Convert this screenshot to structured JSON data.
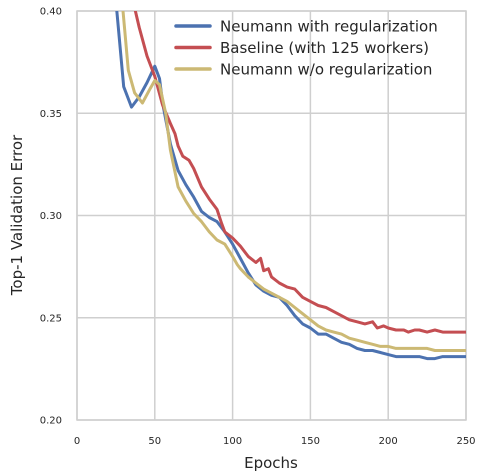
{
  "chart_data": {
    "type": "line",
    "xlabel": "Epochs",
    "ylabel": "Top-1 Validation Error",
    "xlim": [
      0,
      250
    ],
    "ylim": [
      0.2,
      0.4
    ],
    "xticks": [
      "0",
      "50",
      "100",
      "150",
      "200",
      "250"
    ],
    "yticks": [
      "0.20",
      "0.25",
      "0.30",
      "0.35",
      "0.40"
    ],
    "grid": true,
    "legend_position": "top-right",
    "series": [
      {
        "name": "Neumann with regularization",
        "color": "#4c72b0",
        "points": [
          [
            25,
            0.405
          ],
          [
            30,
            0.363
          ],
          [
            35,
            0.353
          ],
          [
            40,
            0.358
          ],
          [
            45,
            0.365
          ],
          [
            50,
            0.373
          ],
          [
            53,
            0.367
          ],
          [
            55,
            0.355
          ],
          [
            60,
            0.335
          ],
          [
            65,
            0.322
          ],
          [
            70,
            0.315
          ],
          [
            75,
            0.309
          ],
          [
            80,
            0.302
          ],
          [
            85,
            0.299
          ],
          [
            90,
            0.297
          ],
          [
            95,
            0.292
          ],
          [
            100,
            0.286
          ],
          [
            105,
            0.279
          ],
          [
            110,
            0.272
          ],
          [
            115,
            0.266
          ],
          [
            120,
            0.263
          ],
          [
            125,
            0.261
          ],
          [
            130,
            0.26
          ],
          [
            135,
            0.256
          ],
          [
            140,
            0.251
          ],
          [
            145,
            0.247
          ],
          [
            150,
            0.245
          ],
          [
            155,
            0.242
          ],
          [
            160,
            0.242
          ],
          [
            165,
            0.24
          ],
          [
            170,
            0.238
          ],
          [
            175,
            0.237
          ],
          [
            180,
            0.235
          ],
          [
            185,
            0.234
          ],
          [
            190,
            0.234
          ],
          [
            195,
            0.233
          ],
          [
            200,
            0.232
          ],
          [
            205,
            0.231
          ],
          [
            210,
            0.231
          ],
          [
            215,
            0.231
          ],
          [
            220,
            0.231
          ],
          [
            225,
            0.23
          ],
          [
            230,
            0.23
          ],
          [
            235,
            0.231
          ],
          [
            240,
            0.231
          ],
          [
            245,
            0.231
          ],
          [
            250,
            0.231
          ]
        ]
      },
      {
        "name": "Baseline (with 125 workers)",
        "color": "#c44e52",
        "points": [
          [
            36,
            0.405
          ],
          [
            40,
            0.392
          ],
          [
            45,
            0.378
          ],
          [
            50,
            0.368
          ],
          [
            55,
            0.354
          ],
          [
            60,
            0.345
          ],
          [
            63,
            0.34
          ],
          [
            65,
            0.334
          ],
          [
            68,
            0.329
          ],
          [
            72,
            0.327
          ],
          [
            75,
            0.323
          ],
          [
            80,
            0.314
          ],
          [
            85,
            0.308
          ],
          [
            90,
            0.303
          ],
          [
            93,
            0.296
          ],
          [
            95,
            0.292
          ],
          [
            100,
            0.289
          ],
          [
            105,
            0.285
          ],
          [
            110,
            0.28
          ],
          [
            115,
            0.277
          ],
          [
            118,
            0.279
          ],
          [
            120,
            0.273
          ],
          [
            123,
            0.274
          ],
          [
            125,
            0.27
          ],
          [
            130,
            0.267
          ],
          [
            135,
            0.265
          ],
          [
            140,
            0.264
          ],
          [
            145,
            0.26
          ],
          [
            150,
            0.258
          ],
          [
            155,
            0.256
          ],
          [
            160,
            0.255
          ],
          [
            165,
            0.253
          ],
          [
            170,
            0.251
          ],
          [
            175,
            0.249
          ],
          [
            180,
            0.248
          ],
          [
            185,
            0.247
          ],
          [
            190,
            0.248
          ],
          [
            193,
            0.245
          ],
          [
            197,
            0.246
          ],
          [
            200,
            0.245
          ],
          [
            205,
            0.244
          ],
          [
            210,
            0.244
          ],
          [
            213,
            0.243
          ],
          [
            217,
            0.244
          ],
          [
            220,
            0.244
          ],
          [
            225,
            0.243
          ],
          [
            230,
            0.244
          ],
          [
            235,
            0.243
          ],
          [
            240,
            0.243
          ],
          [
            245,
            0.243
          ],
          [
            250,
            0.243
          ]
        ]
      },
      {
        "name": "Neumann w/o regularization",
        "color": "#ccb974",
        "points": [
          [
            29,
            0.405
          ],
          [
            33,
            0.371
          ],
          [
            37,
            0.36
          ],
          [
            42,
            0.355
          ],
          [
            47,
            0.362
          ],
          [
            50,
            0.366
          ],
          [
            53,
            0.364
          ],
          [
            57,
            0.35
          ],
          [
            60,
            0.332
          ],
          [
            65,
            0.314
          ],
          [
            70,
            0.307
          ],
          [
            75,
            0.301
          ],
          [
            80,
            0.297
          ],
          [
            85,
            0.292
          ],
          [
            90,
            0.288
          ],
          [
            95,
            0.286
          ],
          [
            100,
            0.28
          ],
          [
            103,
            0.276
          ],
          [
            105,
            0.274
          ],
          [
            110,
            0.27
          ],
          [
            115,
            0.267
          ],
          [
            120,
            0.264
          ],
          [
            125,
            0.262
          ],
          [
            130,
            0.26
          ],
          [
            135,
            0.258
          ],
          [
            140,
            0.255
          ],
          [
            145,
            0.252
          ],
          [
            150,
            0.249
          ],
          [
            155,
            0.246
          ],
          [
            160,
            0.244
          ],
          [
            165,
            0.243
          ],
          [
            170,
            0.242
          ],
          [
            175,
            0.24
          ],
          [
            180,
            0.239
          ],
          [
            185,
            0.238
          ],
          [
            190,
            0.237
          ],
          [
            195,
            0.236
          ],
          [
            200,
            0.236
          ],
          [
            205,
            0.235
          ],
          [
            210,
            0.235
          ],
          [
            215,
            0.235
          ],
          [
            220,
            0.235
          ],
          [
            225,
            0.235
          ],
          [
            230,
            0.234
          ],
          [
            235,
            0.234
          ],
          [
            240,
            0.234
          ],
          [
            245,
            0.234
          ],
          [
            250,
            0.234
          ]
        ]
      }
    ]
  }
}
